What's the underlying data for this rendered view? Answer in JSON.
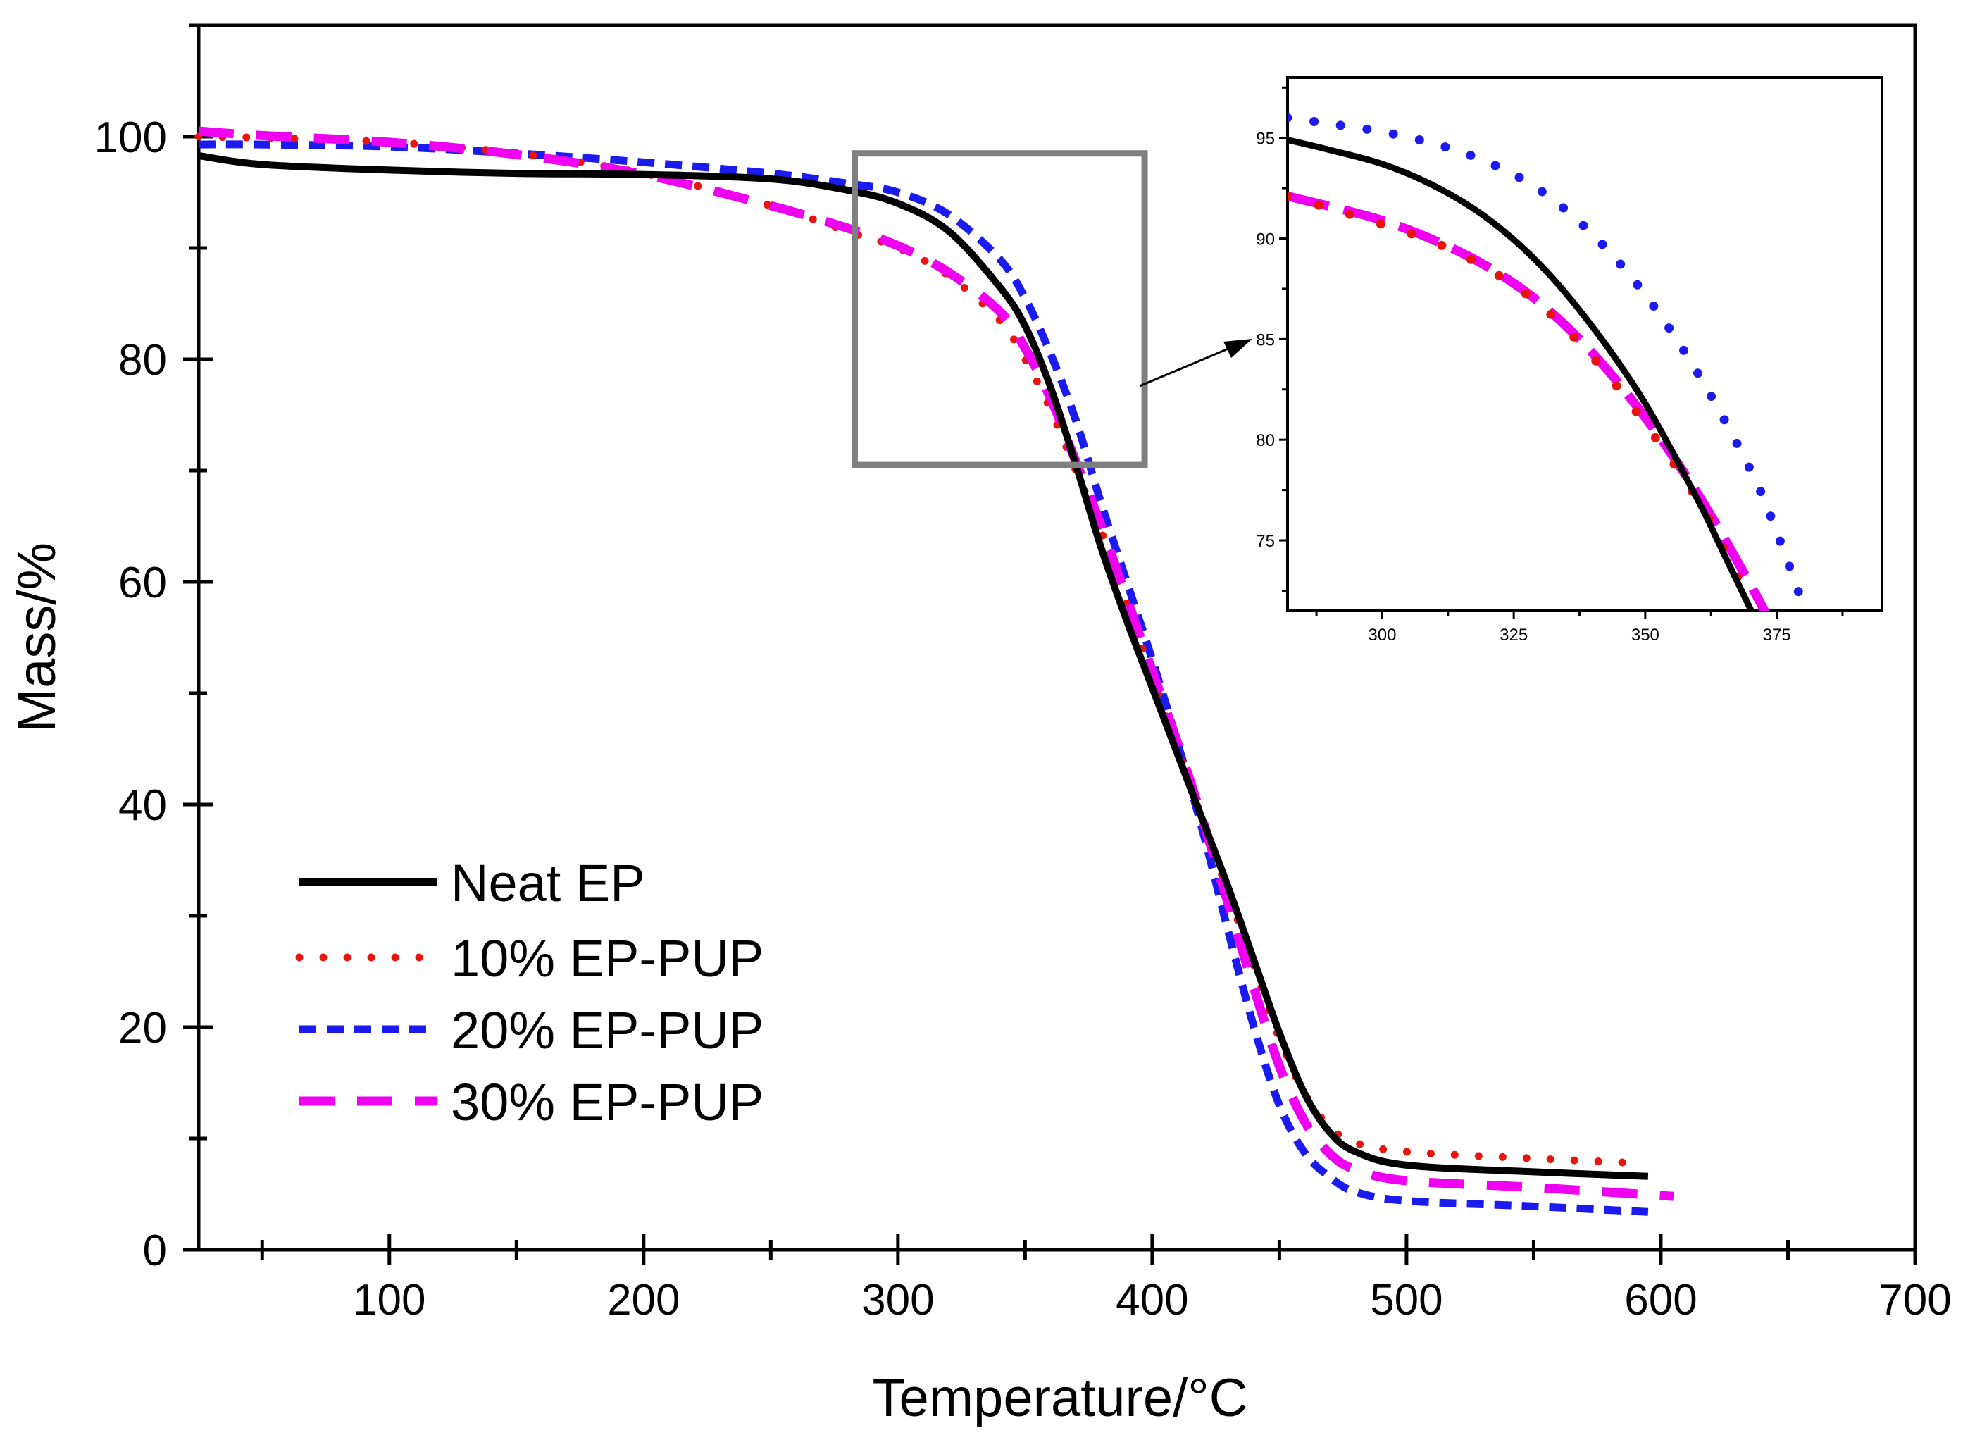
{
  "chart_data": {
    "type": "line",
    "title": "",
    "xlabel": "Temperature/°C",
    "ylabel": "Mass/%",
    "xlim": [
      25,
      700
    ],
    "ylim": [
      0,
      110
    ],
    "xticks": [
      100,
      200,
      300,
      400,
      500,
      600,
      700
    ],
    "yticks": [
      0,
      20,
      40,
      60,
      80,
      100
    ],
    "grid": false,
    "legend_position": "bottom-left",
    "series": [
      {
        "name": "Neat EP",
        "color": "#000000",
        "style": "solid",
        "x": [
          25,
          50,
          100,
          150,
          200,
          250,
          280,
          300,
          320,
          340,
          350,
          360,
          370,
          380,
          390,
          400,
          410,
          420,
          430,
          440,
          450,
          460,
          470,
          480,
          500,
          550,
          595
        ],
        "y": [
          98.3,
          97.5,
          97.0,
          96.7,
          96.6,
          96.2,
          95.2,
          94.0,
          91.5,
          86.5,
          83.0,
          77.5,
          70.5,
          63.0,
          56.5,
          50.5,
          44.5,
          38.5,
          32.5,
          26.0,
          19.5,
          14.0,
          10.5,
          8.8,
          7.6,
          7.0,
          6.6
        ]
      },
      {
        "name": "10% EP-PUP",
        "color": "#e8150c",
        "style": "dotted",
        "x": [
          25,
          50,
          100,
          150,
          200,
          250,
          280,
          300,
          320,
          340,
          350,
          360,
          370,
          380,
          390,
          400,
          410,
          420,
          430,
          440,
          450,
          460,
          470,
          480,
          500,
          550,
          590
        ],
        "y": [
          100.0,
          99.9,
          99.5,
          98.5,
          96.7,
          93.8,
          91.5,
          90.0,
          87.5,
          83.5,
          80.0,
          75.5,
          70.0,
          64.5,
          58.0,
          51.5,
          45.0,
          38.5,
          32.0,
          25.5,
          19.0,
          14.0,
          11.0,
          9.6,
          8.8,
          8.2,
          7.8
        ]
      },
      {
        "name": "20% EP-PUP",
        "color": "#1b1bf0",
        "style": "short-dash",
        "x": [
          25,
          50,
          100,
          150,
          200,
          250,
          280,
          300,
          320,
          340,
          350,
          360,
          370,
          380,
          390,
          400,
          410,
          420,
          430,
          440,
          450,
          460,
          470,
          480,
          500,
          550,
          595
        ],
        "y": [
          99.3,
          99.3,
          99.1,
          98.5,
          97.7,
          96.7,
          95.8,
          95.0,
          93.0,
          89.0,
          85.5,
          80.5,
          74.5,
          67.0,
          60.0,
          53.0,
          45.5,
          37.5,
          28.5,
          20.0,
          13.0,
          8.7,
          6.5,
          5.2,
          4.4,
          3.9,
          3.4
        ]
      },
      {
        "name": "30% EP-PUP",
        "color": "#f000f0",
        "style": "long-dash",
        "x": [
          25,
          50,
          100,
          150,
          200,
          250,
          280,
          300,
          320,
          340,
          350,
          360,
          370,
          380,
          390,
          400,
          410,
          420,
          430,
          440,
          450,
          460,
          470,
          480,
          500,
          550,
          605
        ],
        "y": [
          100.5,
          100.1,
          99.5,
          98.4,
          96.6,
          93.8,
          91.8,
          90.2,
          87.8,
          84.3,
          81.0,
          76.5,
          70.8,
          65.0,
          58.5,
          52.0,
          45.5,
          38.5,
          31.0,
          23.5,
          16.5,
          11.5,
          8.6,
          7.2,
          6.2,
          5.6,
          4.8
        ]
      }
    ],
    "zoom_box": {
      "x_range": [
        283,
        397
      ],
      "y_range": [
        70.5,
        98.5
      ]
    },
    "inset": {
      "xlim": [
        282,
        395
      ],
      "ylim": [
        71.5,
        98
      ],
      "xticks": [
        300,
        325,
        350,
        375
      ],
      "yticks": [
        75,
        80,
        85,
        90,
        95
      ],
      "series": [
        {
          "name": "Neat EP",
          "x": [
            282,
            290,
            300,
            310,
            320,
            330,
            340,
            350,
            360,
            365,
            372
          ],
          "y": [
            94.9,
            94.4,
            93.7,
            92.6,
            91.0,
            88.7,
            85.6,
            81.8,
            77.0,
            74.3,
            70.5
          ]
        },
        {
          "name": "10% EP-PUP",
          "x": [
            282,
            290,
            300,
            310,
            320,
            330,
            340,
            350,
            360,
            365,
            370
          ],
          "y": [
            92.1,
            91.5,
            90.7,
            89.8,
            88.5,
            86.7,
            84.1,
            80.8,
            77.0,
            74.5,
            71.8
          ]
        },
        {
          "name": "20% EP-PUP",
          "x": [
            282,
            290,
            300,
            310,
            320,
            330,
            340,
            350,
            360,
            370,
            375,
            380
          ],
          "y": [
            96.0,
            95.7,
            95.3,
            94.7,
            93.8,
            92.4,
            90.2,
            87.2,
            83.3,
            78.5,
            75.4,
            71.8
          ]
        },
        {
          "name": "30% EP-PUP",
          "x": [
            282,
            290,
            300,
            310,
            320,
            330,
            340,
            350,
            360,
            370,
            376
          ],
          "y": [
            92.1,
            91.6,
            90.9,
            89.9,
            88.6,
            86.8,
            84.3,
            81.1,
            77.3,
            72.8,
            69.8
          ]
        }
      ]
    }
  }
}
